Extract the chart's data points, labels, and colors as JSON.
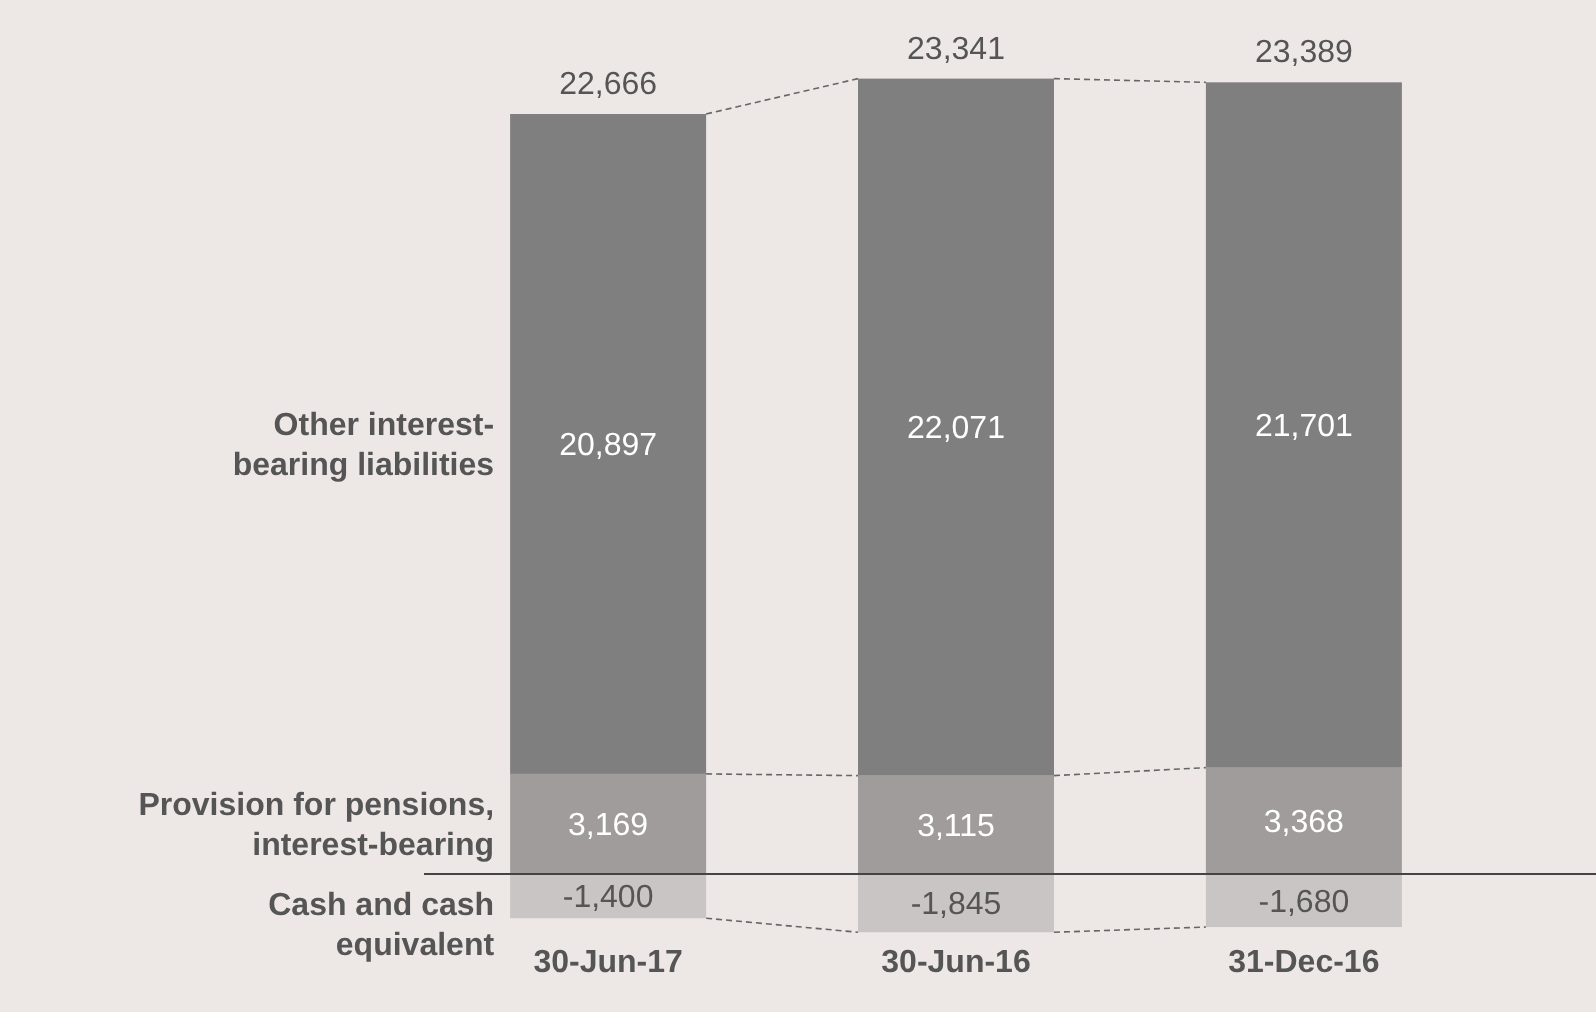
{
  "chart_data": {
    "type": "bar",
    "stacked": true,
    "categories": [
      "30-Jun-17",
      "30-Jun-16",
      "31-Dec-16"
    ],
    "series": [
      {
        "name": "Cash and cash equivalent",
        "color": "#c9c5c5",
        "values": [
          -1400,
          -1845,
          -1680
        ],
        "value_labels": [
          "-1,400",
          "-1,845",
          "-1,680"
        ]
      },
      {
        "name": "Provision for pensions, interest-bearing",
        "color": "#a09c9c",
        "values": [
          3169,
          3115,
          3368
        ],
        "value_labels": [
          "3,169",
          "3,115",
          "3,368"
        ]
      },
      {
        "name": "Other interest-bearing liabilities",
        "color": "#7f7f7f",
        "values": [
          20897,
          22071,
          21701
        ],
        "value_labels": [
          "20,897",
          "22,071",
          "21,701"
        ]
      }
    ],
    "totals": [
      "22,666",
      "23,341",
      "23,389"
    ]
  }
}
